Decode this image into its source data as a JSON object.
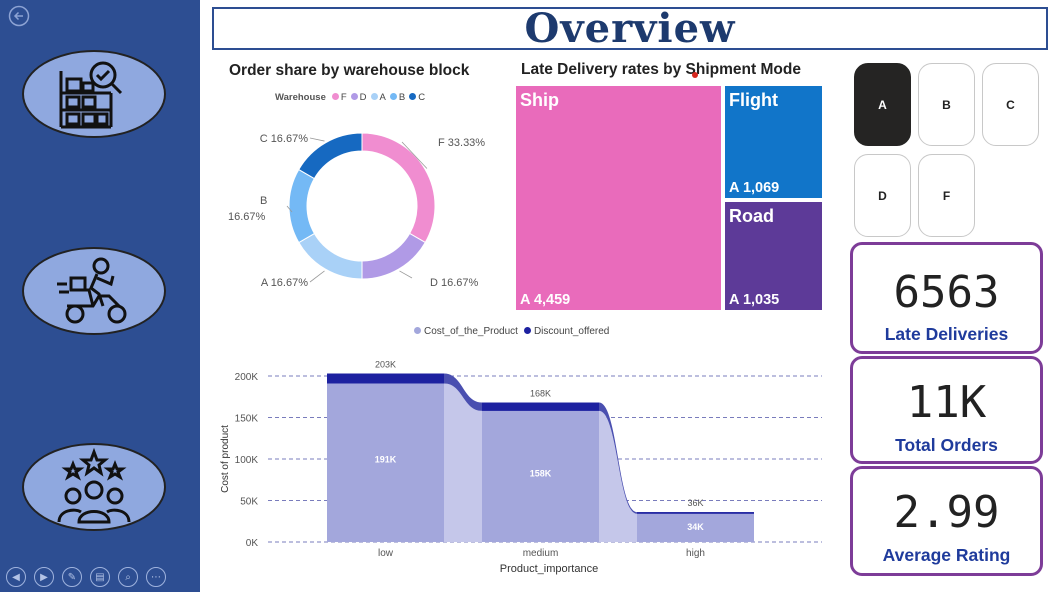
{
  "page": {
    "title": "Overview"
  },
  "sidebar": {
    "nav": [
      {
        "icon": "warehouse-inspection-icon"
      },
      {
        "icon": "delivery-scooter-icon"
      },
      {
        "icon": "customer-rating-icon"
      }
    ],
    "footer_icons": [
      "prev-page-icon",
      "next-page-icon",
      "pen-icon",
      "pages-icon",
      "zoom-icon",
      "more-icon"
    ]
  },
  "slicer": {
    "options": [
      "A",
      "B",
      "C",
      "D",
      "F"
    ],
    "selected": "A"
  },
  "kpis": [
    {
      "value": "6563",
      "label": "Late Deliveries"
    },
    {
      "value": "11K",
      "label": "Total Orders"
    },
    {
      "value": "2.99",
      "label": "Average Rating"
    }
  ],
  "colors": {
    "sidebar": "#2d4e92",
    "F": "#f08dd0",
    "D": "#b09ae6",
    "A": "#a9d1f7",
    "B": "#74b9f5",
    "C": "#1669c1",
    "ship": "#e96bbb",
    "flight": "#1175c9",
    "road": "#5d3a98",
    "cost": "#a3a7dc",
    "discount": "#1d21a0",
    "kpi_border": "#7d3c98"
  },
  "chart_data": [
    {
      "type": "pie",
      "title": "Order share by warehouse block",
      "legend_title": "Warehouse",
      "legend_position": "top",
      "slices": [
        {
          "name": "F",
          "value": 33.33,
          "label": "F 33.33%"
        },
        {
          "name": "D",
          "value": 16.67,
          "label": "D 16.67%"
        },
        {
          "name": "A",
          "value": 16.67,
          "label": "A 16.67%"
        },
        {
          "name": "B",
          "value": 16.67,
          "label": "B 16.67%"
        },
        {
          "name": "C",
          "value": 16.67,
          "label": "C 16.67%"
        }
      ],
      "legend_order": [
        "F",
        "D",
        "A",
        "B",
        "C"
      ]
    },
    {
      "type": "treemap",
      "title": "Late Delivery rates by Shipment Mode",
      "items": [
        {
          "name": "Ship",
          "value": 4459,
          "value_label": "A 4,459"
        },
        {
          "name": "Flight",
          "value": 1069,
          "value_label": "A 1,069"
        },
        {
          "name": "Road",
          "value": 1035,
          "value_label": "A 1,035"
        }
      ]
    },
    {
      "type": "area",
      "xlabel": "Product_importance",
      "ylabel": "Cost of product",
      "categories": [
        "low",
        "medium",
        "high"
      ],
      "ylim": [
        0,
        200000
      ],
      "yticks": [
        0,
        50000,
        100000,
        150000,
        200000
      ],
      "ytick_labels": [
        "0K",
        "50K",
        "100K",
        "150K",
        "200K"
      ],
      "legend_position": "top",
      "series": [
        {
          "name": "Cost_of_the_Product",
          "values": [
            191000,
            158000,
            34000
          ],
          "labels": [
            "191K",
            "158K",
            "34K"
          ]
        },
        {
          "name": "Discount_offered",
          "values": [
            12000,
            10000,
            2000
          ]
        }
      ],
      "totals": [
        203000,
        168000,
        36000
      ],
      "total_labels": [
        "203K",
        "168K",
        "36K"
      ],
      "grid": true
    }
  ]
}
